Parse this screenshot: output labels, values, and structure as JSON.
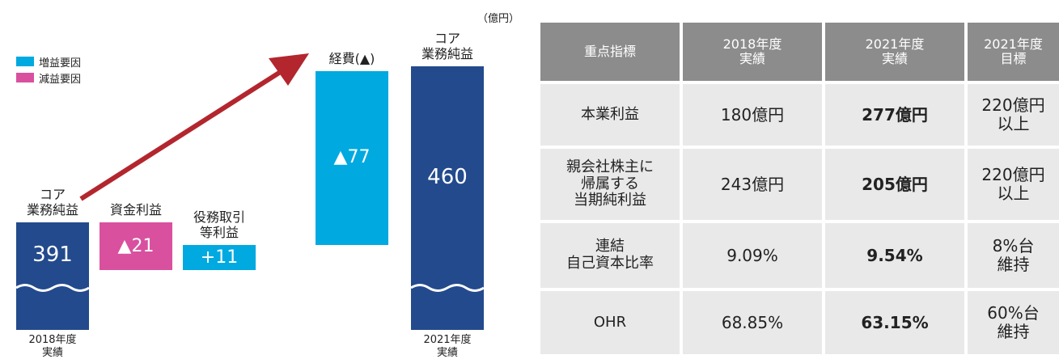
{
  "chart_data": {
    "type": "waterfall",
    "unit": "（億円）",
    "legend": [
      {
        "name": "増益要因",
        "color": "#00a9e0"
      },
      {
        "name": "減益要因",
        "color": "#d9509f"
      }
    ],
    "categories": [
      "コア\n業務純益",
      "資金利益",
      "役務取引\n等利益",
      "経費(▲)",
      "コア\n業務純益"
    ],
    "values": [
      391,
      -21,
      11,
      77,
      460
    ],
    "value_labels": [
      "391",
      "▲21",
      "+11",
      "▲77",
      "460"
    ],
    "kinds": [
      "total",
      "delta",
      "delta",
      "delta",
      "total"
    ],
    "total_color": "#234a8c",
    "period_labels": [
      "2018年度\n実績",
      "2021年度\n実績"
    ]
  },
  "table": {
    "header": [
      "重点指標",
      "2018年度\n実績",
      "2021年度\n実績",
      "2021年度\n目標"
    ],
    "rows": [
      [
        "本業利益",
        "180億円",
        "277億円",
        "220億円\n以上"
      ],
      [
        "親会社株主に\n帰属する\n当期純利益",
        "243億円",
        "205億円",
        "220億円\n以上"
      ],
      [
        "連結\n自己資本比率",
        "9.09%",
        "9.54%",
        "8%台\n維持"
      ],
      [
        "OHR",
        "68.85%",
        "63.15%",
        "60%台\n維持"
      ]
    ]
  }
}
